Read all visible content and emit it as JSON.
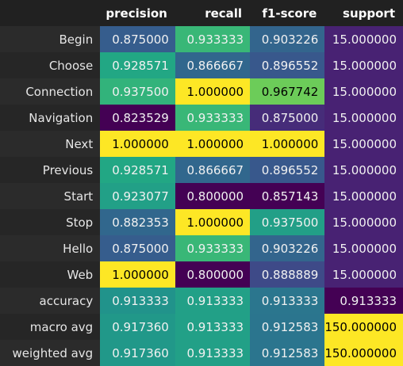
{
  "chart_data": {
    "type": "heatmap",
    "columns": [
      "precision",
      "recall",
      "f1-score",
      "support"
    ],
    "rows": [
      {
        "label": "Begin",
        "values": [
          "0.875000",
          "0.933333",
          "0.903226",
          "15.000000"
        ]
      },
      {
        "label": "Choose",
        "values": [
          "0.928571",
          "0.866667",
          "0.896552",
          "15.000000"
        ]
      },
      {
        "label": "Connection",
        "values": [
          "0.937500",
          "1.000000",
          "0.967742",
          "15.000000"
        ]
      },
      {
        "label": "Navigation",
        "values": [
          "0.823529",
          "0.933333",
          "0.875000",
          "15.000000"
        ]
      },
      {
        "label": "Next",
        "values": [
          "1.000000",
          "1.000000",
          "1.000000",
          "15.000000"
        ]
      },
      {
        "label": "Previous",
        "values": [
          "0.928571",
          "0.866667",
          "0.896552",
          "15.000000"
        ]
      },
      {
        "label": "Start",
        "values": [
          "0.923077",
          "0.800000",
          "0.857143",
          "15.000000"
        ]
      },
      {
        "label": "Stop",
        "values": [
          "0.882353",
          "1.000000",
          "0.937500",
          "15.000000"
        ]
      },
      {
        "label": "Hello",
        "values": [
          "0.875000",
          "0.933333",
          "0.903226",
          "15.000000"
        ]
      },
      {
        "label": "Web",
        "values": [
          "1.000000",
          "0.800000",
          "0.888889",
          "15.000000"
        ]
      },
      {
        "label": "accuracy",
        "values": [
          "0.913333",
          "0.913333",
          "0.913333",
          "0.913333"
        ]
      },
      {
        "label": "macro avg",
        "values": [
          "0.917360",
          "0.913333",
          "0.912583",
          "150.000000"
        ]
      },
      {
        "label": "weighted avg",
        "values": [
          "0.917360",
          "0.913333",
          "0.912583",
          "150.000000"
        ]
      }
    ],
    "colormap": "viridis",
    "color_scale": "per-column",
    "grid": false
  }
}
